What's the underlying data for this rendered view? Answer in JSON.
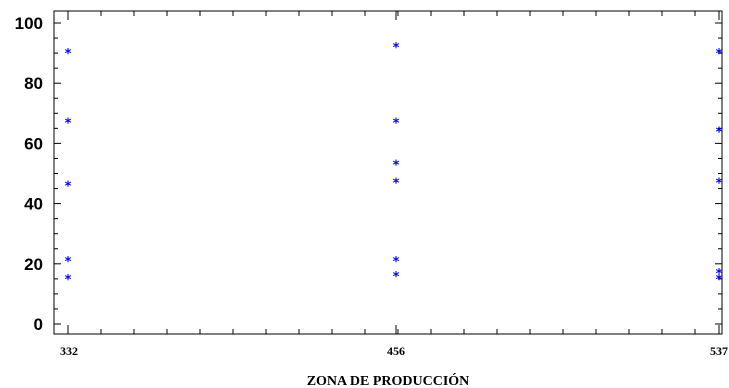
{
  "chart_data": {
    "type": "scatter",
    "title": "",
    "xlabel": "ZONA DE PRODUCCIÓN",
    "ylabel": "",
    "categories": [
      "332",
      "456",
      "537"
    ],
    "ylim": [
      0,
      100
    ],
    "yticks": [
      0,
      20,
      40,
      60,
      80,
      100
    ],
    "grid": false,
    "marker": "*",
    "colors": {
      "points": "#0000ff",
      "axes": "#000000"
    },
    "series": [
      {
        "points": [
          {
            "x": "332",
            "y": 90
          },
          {
            "x": "332",
            "y": 67
          },
          {
            "x": "332",
            "y": 46
          },
          {
            "x": "332",
            "y": 21
          },
          {
            "x": "332",
            "y": 15
          },
          {
            "x": "456",
            "y": 92
          },
          {
            "x": "456",
            "y": 67
          },
          {
            "x": "456",
            "y": 53
          },
          {
            "x": "456",
            "y": 47
          },
          {
            "x": "456",
            "y": 21
          },
          {
            "x": "456",
            "y": 16
          },
          {
            "x": "537",
            "y": 90
          },
          {
            "x": "537",
            "y": 64
          },
          {
            "x": "537",
            "y": 47
          },
          {
            "x": "537",
            "y": 17
          },
          {
            "x": "537",
            "y": 15
          }
        ]
      }
    ]
  }
}
